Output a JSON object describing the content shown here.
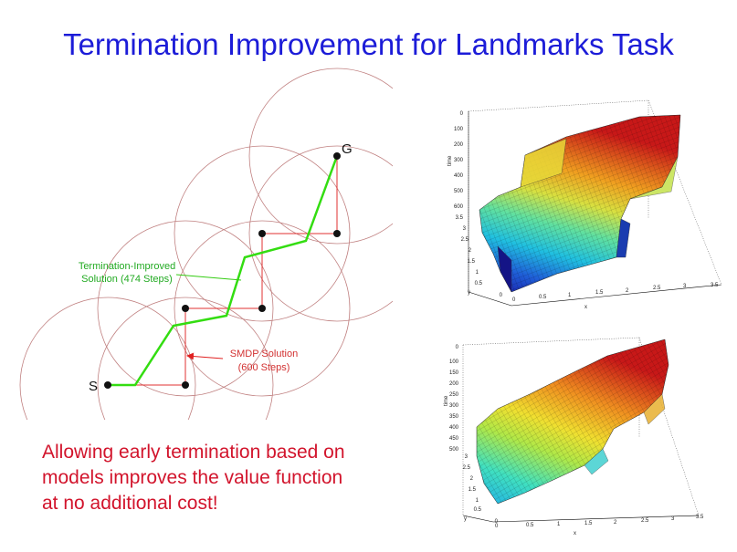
{
  "title": "Termination Improvement for Landmarks Task",
  "diagram": {
    "start_label": "S",
    "goal_label": "G",
    "improved_label_line1": "Termination-Improved",
    "improved_label_line2": "Solution (474 Steps)",
    "smdp_label_line1": "SMDP Solution",
    "smdp_label_line2": "(600 Steps)",
    "colors": {
      "circle": "#c08080",
      "smdp_path": "#e03030",
      "improved_path": "#33dd11",
      "label": "#22aa22",
      "smdp_label": "#d23030",
      "arrow": "#e02020",
      "node": "#111111"
    }
  },
  "conclusion": {
    "line1": "Allowing early termination based on",
    "line2": "models improves the value function",
    "line3": "at no additional cost!"
  },
  "plots": {
    "top": {
      "z_label": "time",
      "y_label": "y",
      "x_label": "x",
      "z_ticks": [
        "0",
        "100",
        "200",
        "300",
        "400",
        "500",
        "600"
      ],
      "y_ticks": [
        "3.5",
        "3",
        "2.5",
        "2",
        "1.5",
        "1",
        "0.5",
        "0"
      ],
      "x_ticks": [
        "0",
        "0.5",
        "1",
        "1.5",
        "2",
        "2.5",
        "3",
        "3.5"
      ]
    },
    "bottom": {
      "z_label": "time",
      "y_label": "y",
      "x_label": "x",
      "z_ticks": [
        "0",
        "100",
        "150",
        "200",
        "250",
        "300",
        "350",
        "400",
        "450",
        "500"
      ],
      "y_ticks": [
        "3",
        "2.5",
        "2",
        "1.5",
        "1",
        "0.5",
        "0"
      ],
      "x_ticks": [
        "0",
        "0.5",
        "1",
        "1.5",
        "2",
        "2.5",
        "3",
        "3.5"
      ]
    }
  }
}
